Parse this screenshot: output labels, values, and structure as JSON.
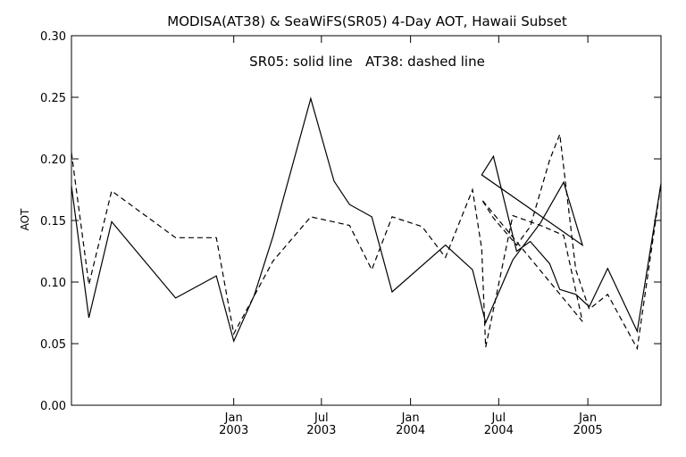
{
  "chart_data": {
    "type": "line",
    "title": "MODISA(AT38) & SeaWiFS(SR05) 4-Day AOT, Hawaii Subset",
    "annotation": "SR05: solid line   AT38: dashed line",
    "xlabel": "",
    "ylabel": "AOT",
    "ylim": [
      0.0,
      0.3
    ],
    "xlim": [
      "2002-01-31",
      "2005-06-01"
    ],
    "grid": false,
    "legend": "none",
    "y_ticks": [
      "0.00",
      "0.05",
      "0.10",
      "0.15",
      "0.20",
      "0.25",
      "0.30"
    ],
    "x_ticks": [
      {
        "date": "2003-01-01",
        "month": "Jan",
        "year": "2003"
      },
      {
        "date": "2003-07-01",
        "month": "Jul",
        "year": "2003"
      },
      {
        "date": "2004-01-01",
        "month": "Jan",
        "year": "2004"
      },
      {
        "date": "2004-07-01",
        "month": "Jul",
        "year": "2004"
      },
      {
        "date": "2005-01-01",
        "month": "Jan",
        "year": "2005"
      }
    ],
    "series": [
      {
        "name": "SR05",
        "style": "solid",
        "color": "#000000",
        "points": [
          [
            "2002-01-31",
            0.178
          ],
          [
            "2002-03-08",
            0.071
          ],
          [
            "2002-04-24",
            0.149
          ],
          [
            "2002-09-03",
            0.087
          ],
          [
            "2002-11-26",
            0.105
          ],
          [
            "2003-01-01",
            0.052
          ],
          [
            "2003-02-12",
            0.089
          ],
          [
            "2003-03-23",
            0.137
          ],
          [
            "2003-06-09",
            0.249
          ],
          [
            "2003-07-27",
            0.182
          ],
          [
            "2003-08-28",
            0.163
          ],
          [
            "2003-10-13",
            0.153
          ],
          [
            "2003-11-24",
            0.092
          ],
          [
            "2004-03-13",
            0.13
          ],
          [
            "2004-05-08",
            0.11
          ],
          [
            "2004-06-04",
            0.067
          ],
          [
            "2004-07-30",
            0.118
          ],
          [
            "2004-09-25",
            0.148
          ],
          [
            "2004-11-12",
            0.181
          ],
          [
            "2004-12-21",
            0.13
          ],
          [
            "2004-05-27",
            0.187
          ],
          [
            "2004-06-20",
            0.202
          ],
          [
            "2004-08-07",
            0.125
          ],
          [
            "2004-09-04",
            0.133
          ],
          [
            "2004-10-14",
            0.115
          ],
          [
            "2004-11-04",
            0.094
          ],
          [
            "2004-12-07",
            0.09
          ],
          [
            "2005-01-04",
            0.08
          ],
          [
            "2005-02-11",
            0.111
          ],
          [
            "2005-04-13",
            0.06
          ],
          [
            "2005-06-01",
            0.18
          ]
        ]
      },
      {
        "name": "AT38",
        "style": "dashed",
        "color": "#000000",
        "points": [
          [
            "2002-01-31",
            0.205
          ],
          [
            "2002-03-08",
            0.098
          ],
          [
            "2002-04-24",
            0.174
          ],
          [
            "2002-09-03",
            0.136
          ],
          [
            "2002-11-26",
            0.136
          ],
          [
            "2003-01-01",
            0.058
          ],
          [
            "2003-03-23",
            0.117
          ],
          [
            "2003-06-09",
            0.153
          ],
          [
            "2003-08-28",
            0.146
          ],
          [
            "2003-10-13",
            0.11
          ],
          [
            "2003-11-24",
            0.153
          ],
          [
            "2004-01-25",
            0.145
          ],
          [
            "2004-03-13",
            0.12
          ],
          [
            "2004-05-08",
            0.175
          ],
          [
            "2004-05-27",
            0.127
          ],
          [
            "2004-06-04",
            0.047
          ],
          [
            "2004-07-30",
            0.154
          ],
          [
            "2004-09-25",
            0.146
          ],
          [
            "2004-11-12",
            0.138
          ],
          [
            "2004-12-21",
            0.068
          ],
          [
            "2004-05-27",
            0.167
          ],
          [
            "2004-06-20",
            0.152
          ],
          [
            "2004-08-07",
            0.13
          ],
          [
            "2004-09-04",
            0.145
          ],
          [
            "2004-10-14",
            0.199
          ],
          [
            "2004-11-04",
            0.22
          ],
          [
            "2004-12-07",
            0.11
          ],
          [
            "2005-01-04",
            0.078
          ],
          [
            "2005-02-11",
            0.09
          ],
          [
            "2005-04-13",
            0.046
          ],
          [
            "2005-06-01",
            0.18
          ]
        ]
      }
    ]
  }
}
